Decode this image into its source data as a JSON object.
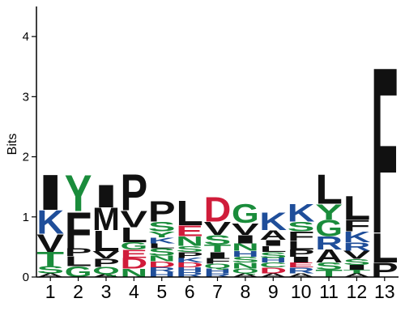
{
  "chart_data": {
    "type": "sequence-logo",
    "ylabel": "Bits",
    "ylim": [
      0,
      4.5
    ],
    "yticks": [
      0,
      1,
      2,
      3,
      4
    ],
    "positions": [
      "1",
      "2",
      "3",
      "4",
      "5",
      "6",
      "7",
      "8",
      "9",
      "10",
      "11",
      "12",
      "13"
    ],
    "colors": {
      "A": "#111111",
      "F": "#111111",
      "I": "#111111",
      "L": "#111111",
      "M": "#111111",
      "P": "#111111",
      "V": "#111111",
      "W": "#111111",
      "G": "#1a8c3b",
      "S": "#1a8c3b",
      "T": "#1a8c3b",
      "Y": "#1a8c3b",
      "C": "#1a8c3b",
      "N": "#1a8c3b",
      "Q": "#1a8c3b",
      "K": "#1f4e9a",
      "R": "#1f4e9a",
      "H": "#1f4e9a",
      "D": "#d01c3a",
      "E": "#d01c3a"
    },
    "columns": [
      [
        [
          "A",
          0.06
        ],
        [
          "S",
          0.12
        ],
        [
          "T",
          0.24
        ],
        [
          "V",
          0.3
        ],
        [
          "K",
          0.4
        ],
        [
          "I",
          0.6
        ]
      ],
      [
        [
          "G",
          0.18
        ],
        [
          "L",
          0.17
        ],
        [
          "P",
          0.13
        ],
        [
          "F",
          0.62
        ],
        [
          "Y",
          0.62
        ]
      ],
      [
        [
          "A",
          0.05
        ],
        [
          "Q",
          0.12
        ],
        [
          "P",
          0.14
        ],
        [
          "V",
          0.12
        ],
        [
          "L",
          0.35
        ],
        [
          "M",
          0.38
        ],
        [
          "I",
          0.38
        ]
      ],
      [
        [
          "N",
          0.14
        ],
        [
          "D",
          0.18
        ],
        [
          "E",
          0.14
        ],
        [
          "G",
          0.12
        ],
        [
          "L",
          0.25
        ],
        [
          "V",
          0.28
        ],
        [
          "P",
          0.62
        ]
      ],
      [
        [
          "H",
          0.08
        ],
        [
          "R",
          0.08
        ],
        [
          "D",
          0.1
        ],
        [
          "N",
          0.1
        ],
        [
          "S",
          0.12
        ],
        [
          "L",
          0.08
        ],
        [
          "K",
          0.1
        ],
        [
          "Y",
          0.1
        ],
        [
          "S",
          0.16
        ],
        [
          "P",
          0.35
        ]
      ],
      [
        [
          "R",
          0.08
        ],
        [
          "H",
          0.08
        ],
        [
          "D",
          0.08
        ],
        [
          "K",
          0.08
        ],
        [
          "P",
          0.1
        ],
        [
          "S",
          0.1
        ],
        [
          "N",
          0.16
        ],
        [
          "E",
          0.18
        ],
        [
          "L",
          0.42
        ]
      ],
      [
        [
          "R",
          0.06
        ],
        [
          "H",
          0.08
        ],
        [
          "Q",
          0.08
        ],
        [
          "F",
          0.1
        ],
        [
          "I",
          0.1
        ],
        [
          "T",
          0.12
        ],
        [
          "S",
          0.16
        ],
        [
          "V",
          0.22
        ],
        [
          "D",
          0.42
        ]
      ],
      [
        [
          "A",
          0.06
        ],
        [
          "Q",
          0.08
        ],
        [
          "N",
          0.1
        ],
        [
          "S",
          0.1
        ],
        [
          "H",
          0.1
        ],
        [
          "N",
          0.12
        ],
        [
          "I",
          0.14
        ],
        [
          "V",
          0.2
        ],
        [
          "G",
          0.32
        ]
      ],
      [
        [
          "A",
          0.06
        ],
        [
          "D",
          0.1
        ],
        [
          "C",
          0.08
        ],
        [
          "H",
          0.08
        ],
        [
          "S",
          0.1
        ],
        [
          "L",
          0.1
        ],
        [
          "I",
          0.1
        ],
        [
          "A",
          0.16
        ],
        [
          "K",
          0.3
        ]
      ],
      [
        [
          "A",
          0.06
        ],
        [
          "R",
          0.1
        ],
        [
          "E",
          0.08
        ],
        [
          "I",
          0.1
        ],
        [
          "P",
          0.12
        ],
        [
          "L",
          0.14
        ],
        [
          "F",
          0.16
        ],
        [
          "S",
          0.16
        ],
        [
          "K",
          0.3
        ]
      ],
      [
        [
          "T",
          0.12
        ],
        [
          "S",
          0.12
        ],
        [
          "A",
          0.22
        ],
        [
          "R",
          0.22
        ],
        [
          "G",
          0.28
        ],
        [
          "Y",
          0.26
        ],
        [
          "L",
          0.5
        ]
      ],
      [
        [
          "A",
          0.06
        ],
        [
          "T",
          0.06
        ],
        [
          "I",
          0.08
        ],
        [
          "S",
          0.1
        ],
        [
          "V",
          0.14
        ],
        [
          "R",
          0.14
        ],
        [
          "K",
          0.18
        ],
        [
          "F",
          0.2
        ],
        [
          "L",
          0.4
        ]
      ],
      [
        [
          "P",
          0.24
        ],
        [
          "L",
          0.5
        ],
        [
          "F",
          2.83
        ]
      ]
    ]
  }
}
